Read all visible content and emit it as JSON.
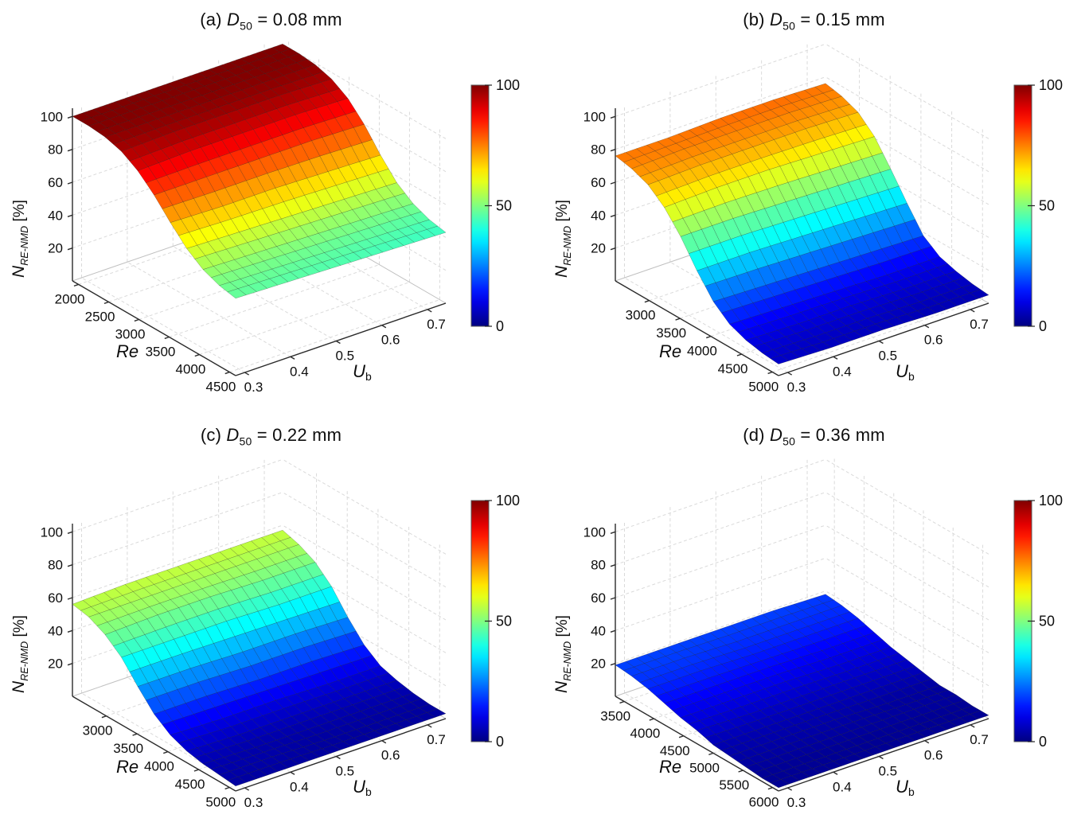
{
  "figure": {
    "background": "#ffffff",
    "colormap": "jet"
  },
  "chart_data": [
    {
      "id": "a",
      "type": "surface3d",
      "title": {
        "prefix": "(a) ",
        "var": "D",
        "var_sub": "50",
        "suffix": " = 0.08 mm"
      },
      "xlabel": {
        "var": "U",
        "sub": "b"
      },
      "ylabel": "Re",
      "zlabel": {
        "var": "N",
        "sub": "RE-NMD",
        "suffix": " [%]"
      },
      "x_ticks": [
        0.3,
        0.4,
        0.5,
        0.6,
        0.7
      ],
      "y_ticks": [
        2000,
        2500,
        3000,
        3500,
        4000,
        4500
      ],
      "z_ticks": [
        20,
        40,
        60,
        80,
        100
      ],
      "x_range": [
        0.28,
        0.74
      ],
      "y_range": [
        1900,
        4600
      ],
      "z_range": [
        0,
        105
      ],
      "ub_samples": [
        0.3,
        0.4,
        0.5,
        0.6,
        0.7
      ],
      "re_samples": [
        1900,
        2170,
        2440,
        2710,
        2980,
        3250,
        3520,
        3790,
        4060,
        4330,
        4600
      ],
      "z_grid": [
        [
          100,
          100,
          100,
          100,
          100
        ],
        [
          100,
          100,
          100,
          100,
          100
        ],
        [
          99,
          99,
          99,
          99,
          99
        ],
        [
          96,
          97,
          97,
          97,
          96
        ],
        [
          90,
          91,
          91,
          91,
          90
        ],
        [
          81,
          81,
          81,
          81,
          80
        ],
        [
          70,
          69,
          69,
          68,
          67
        ],
        [
          60,
          59,
          58,
          57,
          56
        ],
        [
          53,
          52,
          51,
          50,
          49
        ],
        [
          49,
          48,
          47,
          46,
          45
        ],
        [
          47,
          46,
          45,
          44,
          43
        ]
      ],
      "colorbar": {
        "ticks": [
          0,
          50,
          100
        ],
        "range": [
          0,
          100
        ]
      }
    },
    {
      "id": "b",
      "type": "surface3d",
      "title": {
        "prefix": "(b) ",
        "var": "D",
        "var_sub": "50",
        "suffix": " = 0.15 mm"
      },
      "xlabel": {
        "var": "U",
        "sub": "b"
      },
      "ylabel": "Re",
      "zlabel": {
        "var": "N",
        "sub": "RE-NMD",
        "suffix": " [%]"
      },
      "x_ticks": [
        0.3,
        0.4,
        0.5,
        0.6,
        0.7
      ],
      "y_ticks": [
        3000,
        3500,
        4000,
        4500,
        5000
      ],
      "z_ticks": [
        20,
        40,
        60,
        80,
        100
      ],
      "x_range": [
        0.28,
        0.74
      ],
      "y_range": [
        2450,
        5100
      ],
      "z_range": [
        0,
        105
      ],
      "ub_samples": [
        0.3,
        0.4,
        0.5,
        0.6,
        0.7
      ],
      "re_samples": [
        2450,
        2715,
        2980,
        3245,
        3510,
        3775,
        4040,
        4305,
        4570,
        4835,
        5100
      ],
      "z_grid": [
        [
          76,
          76,
          77,
          77,
          76
        ],
        [
          74,
          75,
          75,
          75,
          74
        ],
        [
          70,
          71,
          71,
          71,
          70
        ],
        [
          62,
          63,
          63,
          62,
          61
        ],
        [
          50,
          50,
          49,
          48,
          47
        ],
        [
          35,
          35,
          34,
          33,
          32
        ],
        [
          22,
          21,
          20,
          19,
          18
        ],
        [
          14,
          13,
          12,
          11,
          11
        ],
        [
          10,
          9,
          9,
          8,
          8
        ],
        [
          8,
          7,
          7,
          6,
          6
        ],
        [
          7,
          6,
          6,
          5,
          5
        ]
      ],
      "colorbar": {
        "ticks": [
          0,
          50,
          100
        ],
        "range": [
          0,
          100
        ]
      }
    },
    {
      "id": "c",
      "type": "surface3d",
      "title": {
        "prefix": "(c) ",
        "var": "D",
        "var_sub": "50",
        "suffix": " = 0.22 mm"
      },
      "xlabel": {
        "var": "U",
        "sub": "b"
      },
      "ylabel": "Re",
      "zlabel": {
        "var": "N",
        "sub": "RE-NMD",
        "suffix": " [%]"
      },
      "x_ticks": [
        0.3,
        0.4,
        0.5,
        0.6,
        0.7
      ],
      "y_ticks": [
        3000,
        3500,
        4000,
        4500,
        5000
      ],
      "z_ticks": [
        20,
        40,
        60,
        80,
        100
      ],
      "x_range": [
        0.28,
        0.74
      ],
      "y_range": [
        2450,
        5100
      ],
      "z_range": [
        0,
        105
      ],
      "ub_samples": [
        0.3,
        0.4,
        0.5,
        0.6,
        0.7
      ],
      "re_samples": [
        2450,
        2715,
        2980,
        3245,
        3510,
        3775,
        4040,
        4305,
        4570,
        4835,
        5100
      ],
      "z_grid": [
        [
          56,
          57,
          57,
          57,
          57
        ],
        [
          54,
          54,
          54,
          54,
          54
        ],
        [
          49,
          50,
          50,
          49,
          49
        ],
        [
          41,
          41,
          41,
          40,
          40
        ],
        [
          29,
          29,
          28,
          28,
          27
        ],
        [
          18,
          18,
          17,
          17,
          16
        ],
        [
          11,
          10,
          10,
          9,
          9
        ],
        [
          7,
          6,
          6,
          6,
          6
        ],
        [
          5,
          4,
          4,
          4,
          4
        ],
        [
          4,
          4,
          3,
          3,
          3
        ],
        [
          3,
          3,
          3,
          3,
          3
        ]
      ],
      "colorbar": {
        "ticks": [
          0,
          50,
          100
        ],
        "range": [
          0,
          100
        ]
      }
    },
    {
      "id": "d",
      "type": "surface3d",
      "title": {
        "prefix": "(d) ",
        "var": "D",
        "var_sub": "50",
        "suffix": " = 0.36 mm"
      },
      "xlabel": {
        "var": "U",
        "sub": "b"
      },
      "ylabel": "Re",
      "zlabel": {
        "var": "N",
        "sub": "RE-NMD",
        "suffix": " [%]"
      },
      "x_ticks": [
        0.3,
        0.4,
        0.5,
        0.6,
        0.7
      ],
      "y_ticks": [
        3500,
        4000,
        4500,
        5000,
        5500,
        6000
      ],
      "z_ticks": [
        20,
        40,
        60,
        80,
        100
      ],
      "x_range": [
        0.28,
        0.74
      ],
      "y_range": [
        3350,
        6100
      ],
      "z_range": [
        0,
        105
      ],
      "ub_samples": [
        0.3,
        0.4,
        0.5,
        0.6,
        0.7
      ],
      "re_samples": [
        3350,
        3625,
        3900,
        4175,
        4450,
        4725,
        5000,
        5275,
        5550,
        5825,
        6100
      ],
      "z_grid": [
        [
          19,
          19,
          19,
          19,
          18
        ],
        [
          18,
          18,
          17,
          17,
          17
        ],
        [
          16,
          16,
          15,
          15,
          15
        ],
        [
          13,
          13,
          13,
          12,
          12
        ],
        [
          10,
          10,
          10,
          9,
          9
        ],
        [
          8,
          7,
          7,
          7,
          7
        ],
        [
          5,
          5,
          5,
          5,
          5
        ],
        [
          4,
          4,
          4,
          3,
          3
        ],
        [
          3,
          3,
          3,
          3,
          3
        ],
        [
          2,
          2,
          2,
          2,
          2
        ],
        [
          2,
          2,
          2,
          2,
          2
        ]
      ],
      "colorbar": {
        "ticks": [
          0,
          50,
          100
        ],
        "range": [
          0,
          100
        ]
      }
    }
  ]
}
